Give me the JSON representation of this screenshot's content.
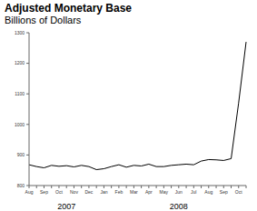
{
  "chart_data": {
    "type": "line",
    "title": "Adjusted Monetary Base",
    "subtitle": "Billions of Dollars",
    "categories": [
      "Aug",
      null,
      "Sep",
      null,
      "Oct",
      null,
      "Nov",
      null,
      "Dec",
      null,
      "Jan",
      null,
      "Feb",
      null,
      "Mar",
      null,
      "Apr",
      null,
      "May",
      null,
      "Jun",
      null,
      "Jul",
      null,
      "Aug",
      null,
      "Sep",
      null,
      "Oct",
      null
    ],
    "values": [
      868,
      862,
      858,
      866,
      863,
      865,
      861,
      866,
      862,
      852,
      855,
      862,
      868,
      860,
      866,
      864,
      870,
      862,
      862,
      866,
      868,
      870,
      868,
      880,
      885,
      884,
      882,
      888,
      1070,
      1270
    ],
    "x_groups": [
      {
        "label": "2007",
        "start": 0,
        "end": 9
      },
      {
        "label": "2008",
        "start": 10,
        "end": 29
      }
    ],
    "color": "#000000",
    "ylim": [
      800,
      1300
    ],
    "yticks": [
      800,
      900,
      1000,
      1100,
      1200,
      1300
    ],
    "grid": false
  }
}
